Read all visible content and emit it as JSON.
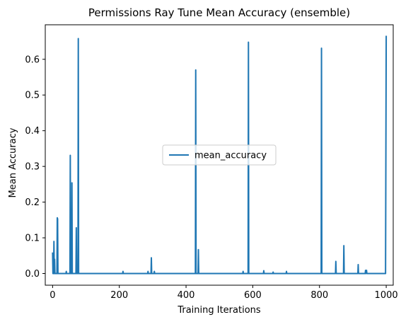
{
  "chart_data": {
    "type": "line",
    "title": "Permissions Ray Tune Mean Accuracy (ensemble)",
    "xlabel": "Training Iterations",
    "ylabel": "Mean Accuracy",
    "xlim": [
      -22,
      1021
    ],
    "ylim": [
      -0.0327,
      0.6967
    ],
    "xticks": [
      0,
      200,
      400,
      600,
      800,
      1000
    ],
    "yticks": [
      0.0,
      0.1,
      0.2,
      0.3,
      0.4,
      0.5,
      0.6
    ],
    "ytick_labels": [
      "0.0",
      "0.1",
      "0.2",
      "0.3",
      "0.4",
      "0.5",
      "0.6"
    ],
    "grid": false,
    "legend_position": "center",
    "series": [
      {
        "name": "mean_accuracy",
        "color": "#1f77b4",
        "x": [
          0,
          1,
          3,
          4,
          5,
          6,
          7,
          8,
          10,
          12,
          13,
          14,
          15,
          16,
          17,
          18,
          19,
          20,
          40,
          41,
          42,
          43,
          52,
          53,
          54,
          55,
          57,
          58,
          59,
          60,
          61,
          70,
          71,
          72,
          73,
          74,
          76,
          77,
          78,
          79,
          80,
          81,
          210,
          211,
          212,
          285,
          286,
          287,
          295,
          296,
          297,
          298,
          304,
          305,
          306,
          428,
          429,
          430,
          431,
          432,
          436,
          437,
          438,
          439,
          570,
          571,
          572,
          586,
          587,
          588,
          589,
          632,
          633,
          634,
          660,
          661,
          662,
          700,
          701,
          702,
          805,
          806,
          807,
          808,
          848,
          849,
          850,
          872,
          873,
          874,
          915,
          916,
          917,
          937,
          938,
          939,
          941,
          942,
          995,
          998,
          1000
        ],
        "y": [
          0.057,
          0.0,
          0.0,
          0.09,
          0.0,
          0.04,
          0.0,
          0.0,
          0.0,
          0.0,
          0.0,
          0.156,
          0.153,
          0.0,
          0.0,
          0.0,
          0.0,
          0.0,
          0.0,
          0.006,
          0.0,
          0.0,
          0.0,
          0.331,
          0.0,
          0.0,
          0.0,
          0.254,
          0.0,
          0.0,
          0.0,
          0.0,
          0.128,
          0.0,
          0.0,
          0.0,
          0.0,
          0.658,
          0.0,
          0.0,
          0.0,
          0.0,
          0.0,
          0.006,
          0.0,
          0.0,
          0.006,
          0.0,
          0.0,
          0.044,
          0.0,
          0.0,
          0.0,
          0.006,
          0.0,
          0.0,
          0.57,
          0.0,
          0.0,
          0.0,
          0.0,
          0.067,
          0.0,
          0.0,
          0.0,
          0.006,
          0.0,
          0.0,
          0.648,
          0.0,
          0.0,
          0.0,
          0.008,
          0.0,
          0.0,
          0.004,
          0.0,
          0.0,
          0.006,
          0.0,
          0.0,
          0.631,
          0.0,
          0.0,
          0.0,
          0.034,
          0.0,
          0.0,
          0.078,
          0.0,
          0.0,
          0.025,
          0.0,
          0.0,
          0.009,
          0.0,
          0.009,
          0.0,
          0.0,
          0.0,
          0.664
        ]
      }
    ]
  }
}
